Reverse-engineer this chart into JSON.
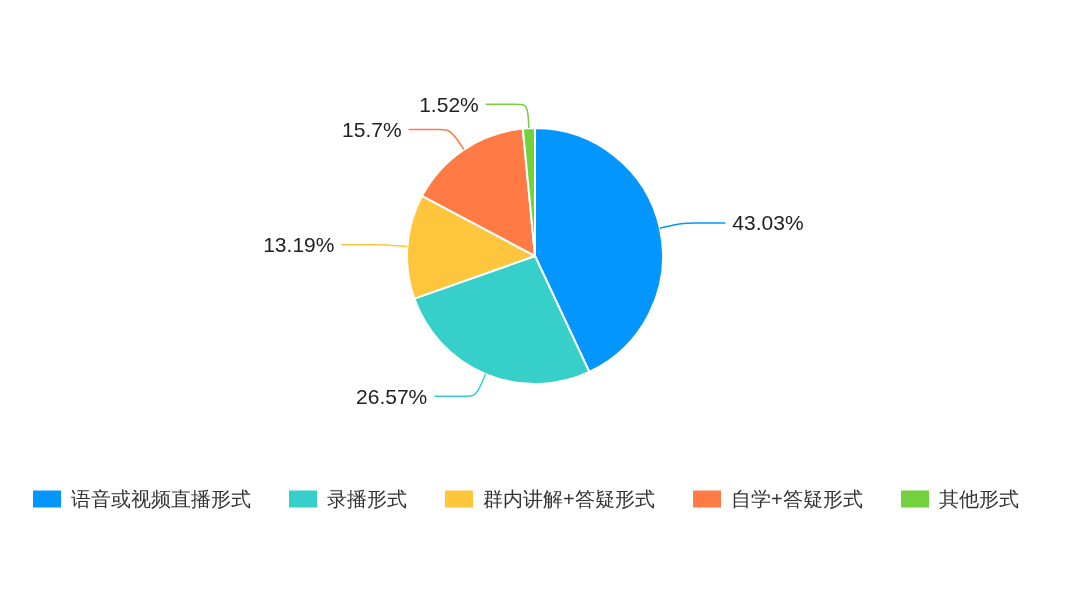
{
  "chart_data": {
    "type": "pie",
    "categories": [
      "语音或视频直播形式",
      "录播形式",
      "群内讲解+答疑形式",
      "自学+答疑形式",
      "其他形式"
    ],
    "values": [
      43.03,
      26.57,
      13.19,
      15.7,
      1.52
    ],
    "colors": [
      "#0396ff",
      "#36cfc9",
      "#ffc53d",
      "#ff7a45",
      "#73d13d"
    ],
    "value_labels": [
      "43.03%",
      "26.57%",
      "13.19%",
      "15.7%",
      "1.52%"
    ],
    "legend": "bottom"
  }
}
